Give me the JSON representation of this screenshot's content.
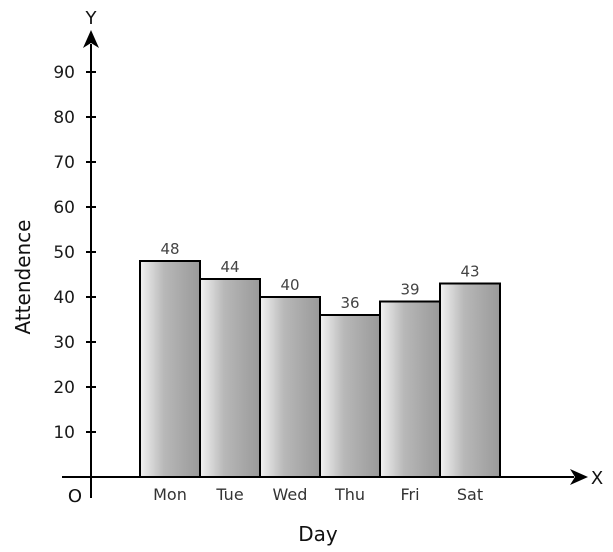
{
  "chart_data": {
    "type": "bar",
    "categories": [
      "Mon",
      "Tue",
      "Wed",
      "Thu",
      "Fri",
      "Sat"
    ],
    "values": [
      48,
      44,
      40,
      36,
      39,
      43
    ],
    "value_labels": [
      "48",
      "44",
      "40",
      "36",
      "39",
      "43"
    ],
    "xlabel": "Day",
    "ylabel": "Attendence",
    "ylim": [
      0,
      90
    ],
    "yticks": [
      10,
      20,
      30,
      40,
      50,
      60,
      70,
      80,
      90
    ],
    "ytick_labels": [
      "10",
      "20",
      "30",
      "40",
      "50",
      "60",
      "70",
      "80",
      "90"
    ],
    "x_axis_letter": "X",
    "y_axis_letter": "Y",
    "origin_label": "O",
    "grid": false,
    "bar_colors": {
      "light": "#f2f2f2",
      "dark": "#999999",
      "outline": "#000000"
    }
  }
}
